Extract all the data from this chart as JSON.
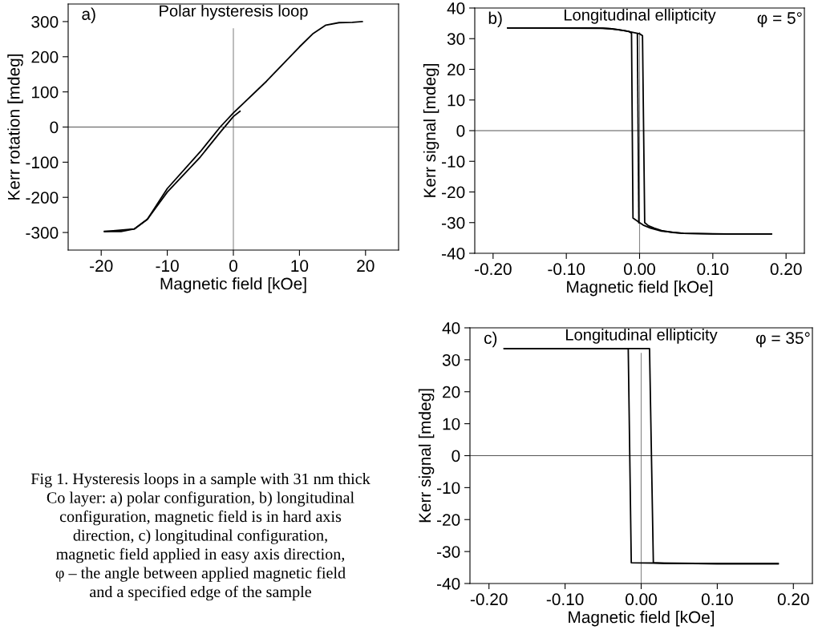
{
  "chart_data": [
    {
      "type": "line",
      "title": "Polar hysteresis loop",
      "xlabel": "Magnetic field [kOe]",
      "ylabel": "Kerr rotation [mdeg]",
      "xlim": [
        -25,
        25
      ],
      "ylim": [
        -350,
        350
      ],
      "xticks": [
        -20,
        -10,
        0,
        10,
        20
      ],
      "yticks": [
        -300,
        -200,
        -100,
        0,
        100,
        200,
        300
      ],
      "grid": false,
      "legend": false,
      "marker": "none",
      "line_style": "solid",
      "ref_lines": [
        {
          "axis": "x",
          "value": 0,
          "color": "#888888"
        },
        {
          "axis": "y",
          "value": 0,
          "color": "#555555"
        }
      ],
      "annotations": [
        "a)"
      ],
      "series": [
        {
          "color": "#000000",
          "x": [
            -19.5,
            -17,
            -15,
            -13,
            -10,
            -5,
            -2,
            0,
            1
          ],
          "values": [
            -297,
            -297,
            -290,
            -262,
            -185,
            -85,
            -15,
            30,
            45
          ]
        },
        {
          "color": "#000000",
          "x": [
            19.5,
            18,
            16,
            14,
            12,
            10,
            5,
            0,
            -2,
            -5,
            -10,
            -13,
            -15,
            -19.5
          ],
          "values": [
            300,
            298,
            297,
            290,
            265,
            228,
            130,
            40,
            0,
            -70,
            -175,
            -262,
            -290,
            -297
          ]
        }
      ]
    },
    {
      "type": "line",
      "title": "Longitudinal ellipticity",
      "xlabel": "Magnetic field [kOe]",
      "ylabel": "Kerr signal [mdeg]",
      "xlim": [
        -0.225,
        0.225
      ],
      "ylim": [
        -40,
        40
      ],
      "xticks": [
        {
          "value": -0.2,
          "label": "-0.20"
        },
        {
          "value": -0.1,
          "label": "-0.10"
        },
        {
          "value": 0,
          "label": "0.00"
        },
        {
          "value": 0.1,
          "label": "0.10"
        },
        {
          "value": 0.2,
          "label": "0.20"
        }
      ],
      "yticks": [
        -40,
        -30,
        -20,
        -10,
        0,
        10,
        20,
        30,
        40
      ],
      "grid": false,
      "legend": false,
      "marker": "none",
      "line_style": "solid",
      "ref_lines": [
        {
          "axis": "x",
          "value": 0,
          "color": "#888888"
        },
        {
          "axis": "y",
          "value": 0,
          "color": "#555555"
        }
      ],
      "annotations": [
        "b)",
        "φ = 5°"
      ],
      "series": [
        {
          "color": "#000000",
          "x": [
            -0.18,
            -0.06,
            -0.04,
            -0.02,
            0.0,
            0.004,
            0.007,
            0.012,
            0.02,
            0.03,
            0.045,
            0.06,
            0.1,
            0.18
          ],
          "values": [
            33.5,
            33.5,
            33.3,
            32.6,
            31.6,
            31.0,
            -30.0,
            -31.0,
            -31.8,
            -32.6,
            -33.2,
            -33.5,
            -33.7,
            -33.7
          ]
        },
        {
          "color": "#000000",
          "x": [
            0.18,
            0.12,
            0.06,
            0.03,
            0.015,
            0.005,
            0.0,
            -0.009,
            -0.011,
            -0.015,
            -0.03,
            -0.05,
            -0.18
          ],
          "values": [
            -33.7,
            -33.7,
            -33.5,
            -32.8,
            -31.8,
            -30.8,
            -30.0,
            -28.5,
            31.8,
            32.4,
            33.0,
            33.4,
            33.5
          ]
        },
        {
          "color": "#000000",
          "x": [
            -0.003,
            -0.001
          ],
          "values": [
            31.6,
            -30.0
          ]
        }
      ]
    },
    {
      "type": "line",
      "title": "Longitudinal ellipticity",
      "xlabel": "Magnetic field [kOe]",
      "ylabel": "Kerr signal [mdeg]",
      "xlim": [
        -0.225,
        0.225
      ],
      "ylim": [
        -40,
        40
      ],
      "xticks": [
        {
          "value": -0.2,
          "label": "-0.20"
        },
        {
          "value": -0.1,
          "label": "-0.10"
        },
        {
          "value": 0,
          "label": "0.00"
        },
        {
          "value": 0.1,
          "label": "0.10"
        },
        {
          "value": 0.2,
          "label": "0.20"
        }
      ],
      "yticks": [
        -40,
        -30,
        -20,
        -10,
        0,
        10,
        20,
        30,
        40
      ],
      "grid": false,
      "legend": false,
      "marker": "none",
      "line_style": "solid",
      "ref_lines": [
        {
          "axis": "x",
          "value": 0,
          "color": "#888888"
        },
        {
          "axis": "y",
          "value": 0,
          "color": "#555555"
        }
      ],
      "annotations": [
        "c)",
        "φ = 35°",
        "Fig 1. Hysteresis loops in a sample with 31 nm thick\nCo layer: a) polar configuration, b) longitudinal\nconfiguration, magnetic field is in hard axis\ndirection, c) longitudinal configuration,\nmagnetic field applied in easy axis direction,\nφ – the angle between applied magnetic field\nand a specified edge of the sample"
      ],
      "series": [
        {
          "color": "#000000",
          "x": [
            -0.18,
            -0.1,
            -0.04,
            0.0,
            0.011,
            0.016,
            0.03,
            0.1,
            0.18
          ],
          "values": [
            33.5,
            33.5,
            33.5,
            33.5,
            33.5,
            -33.5,
            -33.7,
            -33.8,
            -33.8
          ]
        },
        {
          "color": "#000000",
          "x": [
            0.18,
            0.1,
            0.02,
            -0.013,
            -0.017,
            -0.05,
            -0.18
          ],
          "values": [
            -33.8,
            -33.8,
            -33.6,
            -33.5,
            33.5,
            33.5,
            33.5
          ]
        }
      ]
    }
  ]
}
